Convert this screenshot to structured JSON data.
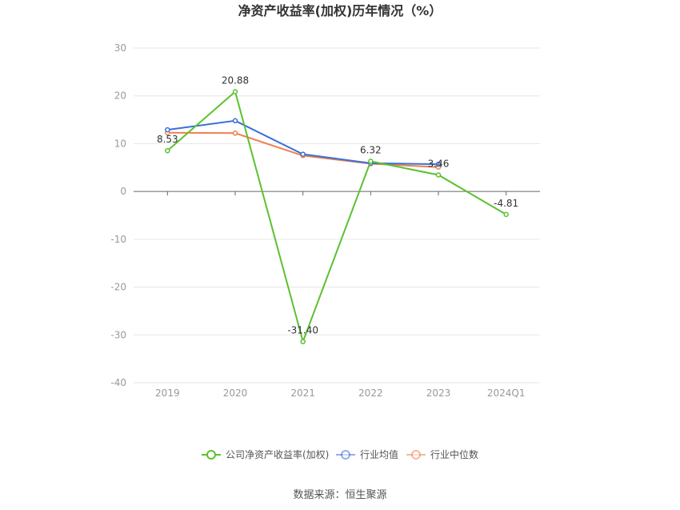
{
  "chart_data": {
    "type": "line",
    "title": "净资产收益率(加权)历年情况（%）",
    "categories": [
      "2019",
      "2020",
      "2021",
      "2022",
      "2023",
      "2024Q1"
    ],
    "ylim": [
      -40,
      30
    ],
    "yticks": [
      30,
      20,
      10,
      0,
      -10,
      -20,
      -30,
      -40
    ],
    "grid": true,
    "legend_position": "bottom",
    "series": [
      {
        "name": "公司净资产收益率(加权)",
        "color": "#5cc12f",
        "values": [
          8.53,
          20.88,
          -31.4,
          6.32,
          3.46,
          -4.81
        ],
        "labels": [
          "8.53",
          "20.88",
          "-31.40",
          "6.32",
          "3.46",
          "-4.81"
        ]
      },
      {
        "name": "行业均值",
        "color": "#3a6fd8",
        "values": [
          12.9,
          14.8,
          7.8,
          5.9,
          5.7,
          null
        ]
      },
      {
        "name": "行业中位数",
        "color": "#f07f4f",
        "values": [
          12.3,
          12.2,
          7.5,
          5.8,
          5.1,
          null
        ]
      }
    ]
  },
  "source": "数据来源：恒生聚源"
}
